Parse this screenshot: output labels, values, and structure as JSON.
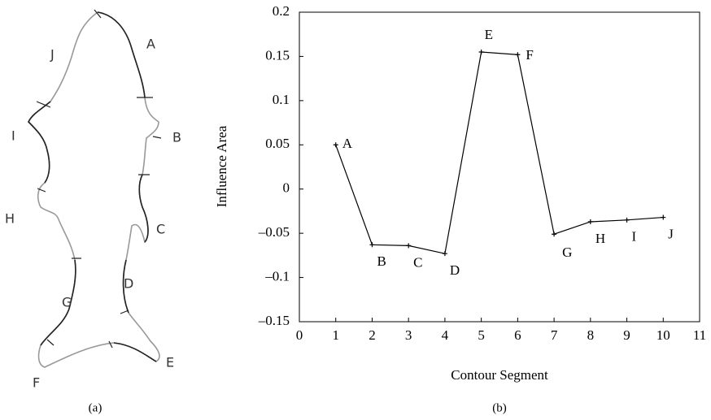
{
  "panel_a": {
    "caption": "(a)",
    "labels": [
      "J",
      "A",
      "I",
      "B",
      "H",
      "C",
      "D",
      "G",
      "F",
      "E"
    ]
  },
  "chart_data": {
    "type": "line",
    "caption": "(b)",
    "x_label": "Contour Segment",
    "y_label": "Influence Area",
    "x": [
      1,
      2,
      3,
      4,
      5,
      6,
      7,
      8,
      9,
      10
    ],
    "point_labels": [
      "A",
      "B",
      "C",
      "D",
      "E",
      "F",
      "G",
      "H",
      "I",
      "J"
    ],
    "values": [
      0.05,
      -0.063,
      -0.064,
      -0.073,
      0.155,
      0.152,
      -0.051,
      -0.037,
      -0.035,
      -0.032
    ],
    "color": "#000000",
    "xlim": [
      0,
      11
    ],
    "xticks": [
      0,
      1,
      2,
      3,
      4,
      5,
      6,
      7,
      8,
      9,
      10,
      11
    ],
    "ylim": [
      -0.15,
      0.2
    ],
    "yticks": [
      {
        "value": -0.15,
        "label": "–0.15"
      },
      {
        "value": -0.1,
        "label": "–0.1"
      },
      {
        "value": -0.05,
        "label": "–0.05"
      },
      0,
      0.05,
      0.1,
      0.15,
      0.2
    ],
    "grid": false
  }
}
